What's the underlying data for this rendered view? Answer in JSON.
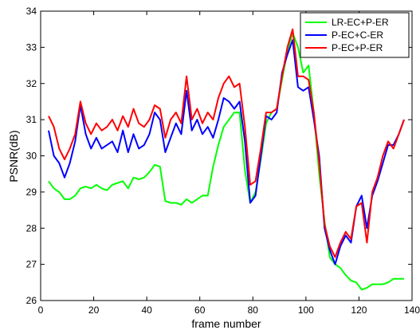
{
  "chart_data": {
    "type": "line",
    "title": "",
    "xlabel": "frame number",
    "ylabel": "PSNR(dB)",
    "xlim": [
      0,
      140
    ],
    "ylim": [
      26,
      34
    ],
    "xticks": [
      0,
      20,
      40,
      60,
      80,
      100,
      120,
      140
    ],
    "yticks": [
      26,
      27,
      28,
      29,
      30,
      31,
      32,
      33,
      34
    ],
    "grid": false,
    "legend_position": "top-right",
    "series": [
      {
        "name": "LR-EC+P-ER",
        "color": "#00ff00",
        "x": [
          3,
          5,
          7,
          9,
          11,
          13,
          15,
          17,
          19,
          21,
          23,
          25,
          27,
          29,
          31,
          33,
          35,
          37,
          39,
          41,
          43,
          45,
          47,
          49,
          51,
          53,
          55,
          57,
          59,
          61,
          63,
          65,
          67,
          69,
          71,
          73,
          75,
          77,
          79,
          81,
          83,
          85,
          87,
          89,
          91,
          93,
          95,
          97,
          99,
          101,
          103,
          105,
          107,
          109,
          111,
          113,
          115,
          117,
          119,
          121,
          123,
          125,
          127,
          129,
          131,
          133,
          135,
          137
        ],
        "values": [
          29.3,
          29.1,
          29.0,
          28.8,
          28.8,
          28.9,
          29.1,
          29.15,
          29.1,
          29.2,
          29.1,
          29.05,
          29.2,
          29.25,
          29.3,
          29.1,
          29.4,
          29.35,
          29.4,
          29.55,
          29.75,
          29.7,
          28.75,
          28.7,
          28.7,
          28.65,
          28.8,
          28.7,
          28.8,
          28.9,
          28.9,
          29.7,
          30.3,
          30.8,
          31.0,
          31.2,
          31.2,
          29.6,
          28.7,
          29.0,
          29.9,
          30.9,
          31.2,
          31.3,
          32.1,
          32.9,
          33.4,
          33.0,
          32.3,
          32.5,
          31.2,
          29.5,
          28.2,
          27.2,
          27.0,
          26.9,
          26.7,
          26.55,
          26.5,
          26.3,
          26.35,
          26.45,
          26.45,
          26.45,
          26.5,
          26.6,
          26.6,
          26.6
        ]
      },
      {
        "name": "P-EC+C-ER",
        "color": "#0000ff",
        "x": [
          3,
          5,
          7,
          9,
          11,
          13,
          15,
          17,
          19,
          21,
          23,
          25,
          27,
          29,
          31,
          33,
          35,
          37,
          39,
          41,
          43,
          45,
          47,
          49,
          51,
          53,
          55,
          57,
          59,
          61,
          63,
          65,
          67,
          69,
          71,
          73,
          75,
          77,
          79,
          81,
          83,
          85,
          87,
          89,
          91,
          93,
          95,
          97,
          99,
          101,
          103,
          105,
          107,
          109,
          111,
          113,
          115,
          117,
          119,
          121,
          123,
          125,
          127,
          129,
          131,
          133,
          135,
          137
        ],
        "values": [
          30.7,
          30.0,
          29.8,
          29.4,
          29.8,
          30.4,
          31.4,
          30.6,
          30.2,
          30.5,
          30.2,
          30.3,
          30.4,
          30.1,
          30.7,
          30.1,
          30.6,
          30.2,
          30.3,
          30.6,
          31.2,
          31.0,
          30.1,
          30.5,
          30.9,
          30.6,
          31.8,
          30.7,
          31.0,
          30.6,
          30.8,
          30.5,
          31.0,
          31.6,
          31.5,
          31.3,
          31.5,
          30.4,
          28.7,
          28.9,
          30.0,
          31.1,
          31.0,
          31.2,
          32.3,
          32.8,
          33.2,
          31.9,
          31.8,
          31.9,
          31.0,
          30.0,
          28.0,
          27.4,
          27.0,
          27.5,
          27.8,
          27.6,
          28.6,
          28.9,
          28.0,
          28.9,
          29.3,
          29.8,
          30.3,
          30.3,
          30.6,
          31.0
        ]
      },
      {
        "name": "P-EC+P-ER",
        "color": "#ff0000",
        "x": [
          3,
          5,
          7,
          9,
          11,
          13,
          15,
          17,
          19,
          21,
          23,
          25,
          27,
          29,
          31,
          33,
          35,
          37,
          39,
          41,
          43,
          45,
          47,
          49,
          51,
          53,
          55,
          57,
          59,
          61,
          63,
          65,
          67,
          69,
          71,
          73,
          75,
          77,
          79,
          81,
          83,
          85,
          87,
          89,
          91,
          93,
          95,
          97,
          99,
          101,
          103,
          105,
          107,
          109,
          111,
          113,
          115,
          117,
          119,
          121,
          123,
          125,
          127,
          129,
          131,
          133,
          135,
          137
        ],
        "values": [
          31.1,
          30.8,
          30.2,
          29.9,
          30.2,
          30.6,
          31.5,
          30.9,
          30.6,
          30.9,
          30.7,
          30.8,
          31.0,
          30.7,
          31.1,
          30.8,
          31.3,
          30.9,
          30.8,
          31.0,
          31.4,
          31.3,
          30.5,
          31.0,
          31.2,
          30.9,
          32.2,
          31.0,
          31.3,
          30.9,
          31.2,
          31.0,
          31.6,
          32.0,
          32.2,
          31.9,
          32.0,
          30.8,
          29.2,
          29.3,
          30.2,
          31.2,
          31.2,
          31.3,
          32.2,
          33.0,
          33.5,
          32.2,
          32.2,
          32.1,
          31.2,
          29.8,
          28.1,
          27.5,
          27.2,
          27.6,
          27.9,
          27.7,
          28.6,
          28.7,
          27.6,
          29.0,
          29.4,
          30.0,
          30.4,
          30.2,
          30.6,
          31.0
        ]
      }
    ]
  }
}
